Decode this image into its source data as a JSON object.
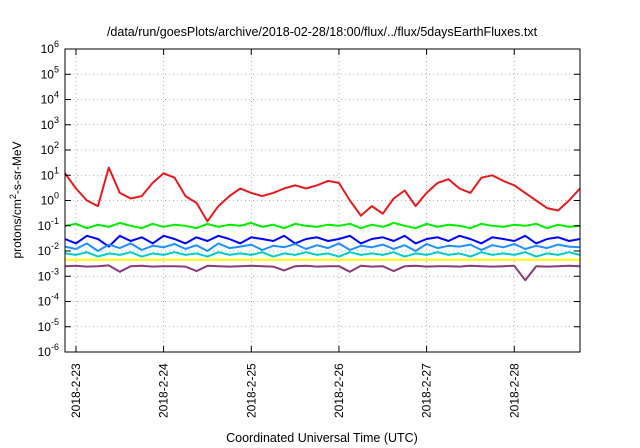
{
  "chart_data": {
    "type": "line",
    "title": "/data/run/goesPlots/archive/2018-02-28/18:00/flux/../flux/5daysEarthFluxes.txt",
    "xlabel": "Coordinated Universal Time (UTC)",
    "ylabel": {
      "base": "protons/cm",
      "sup": "2",
      "rest": "-s-sr-MeV"
    },
    "yscale": "log",
    "ylim": [
      1e-06,
      1000000.0
    ],
    "yticks": [
      {
        "value": 1e-06,
        "base": "10",
        "exp": "-6"
      },
      {
        "value": 1e-05,
        "base": "10",
        "exp": "-5"
      },
      {
        "value": 0.0001,
        "base": "10",
        "exp": "-4"
      },
      {
        "value": 0.001,
        "base": "10",
        "exp": "-3"
      },
      {
        "value": 0.01,
        "base": "10",
        "exp": "-2"
      },
      {
        "value": 0.1,
        "base": "10",
        "exp": "-1"
      },
      {
        "value": 1.0,
        "base": "10",
        "exp": "0"
      },
      {
        "value": 10.0,
        "base": "10",
        "exp": "1"
      },
      {
        "value": 100.0,
        "base": "10",
        "exp": "2"
      },
      {
        "value": 1000.0,
        "base": "10",
        "exp": "3"
      },
      {
        "value": 10000.0,
        "base": "10",
        "exp": "4"
      },
      {
        "value": 100000.0,
        "base": "10",
        "exp": "5"
      },
      {
        "value": 1000000.0,
        "base": "10",
        "exp": "6"
      }
    ],
    "xlim": [
      "2018-02-22 21:00",
      "2018-02-28 18:00"
    ],
    "xticks": [
      {
        "value": "2018-02-23 00:00",
        "label": "2018-2-23"
      },
      {
        "value": "2018-02-24 00:00",
        "label": "2018-2-24"
      },
      {
        "value": "2018-02-25 00:00",
        "label": "2018-2-25"
      },
      {
        "value": "2018-02-26 00:00",
        "label": "2018-2-26"
      },
      {
        "value": "2018-02-27 00:00",
        "label": "2018-2-27"
      },
      {
        "value": "2018-02-28 00:00",
        "label": "2018-2-28"
      }
    ],
    "grid": true,
    "legend": "none",
    "x": [
      "2018-02-22 21:00",
      "2018-02-23 00:00",
      "2018-02-23 03:00",
      "2018-02-23 06:00",
      "2018-02-23 09:00",
      "2018-02-23 12:00",
      "2018-02-23 15:00",
      "2018-02-23 18:00",
      "2018-02-23 21:00",
      "2018-02-24 00:00",
      "2018-02-24 03:00",
      "2018-02-24 06:00",
      "2018-02-24 09:00",
      "2018-02-24 12:00",
      "2018-02-24 15:00",
      "2018-02-24 18:00",
      "2018-02-24 21:00",
      "2018-02-25 00:00",
      "2018-02-25 03:00",
      "2018-02-25 06:00",
      "2018-02-25 09:00",
      "2018-02-25 12:00",
      "2018-02-25 15:00",
      "2018-02-25 18:00",
      "2018-02-25 21:00",
      "2018-02-26 00:00",
      "2018-02-26 03:00",
      "2018-02-26 06:00",
      "2018-02-26 09:00",
      "2018-02-26 12:00",
      "2018-02-26 15:00",
      "2018-02-26 18:00",
      "2018-02-26 21:00",
      "2018-02-27 00:00",
      "2018-02-27 03:00",
      "2018-02-27 06:00",
      "2018-02-27 09:00",
      "2018-02-27 12:00",
      "2018-02-27 15:00",
      "2018-02-27 18:00",
      "2018-02-27 21:00",
      "2018-02-28 00:00",
      "2018-02-28 03:00",
      "2018-02-28 06:00",
      "2018-02-28 09:00",
      "2018-02-28 12:00",
      "2018-02-28 15:00",
      "2018-02-28 18:00"
    ],
    "series": [
      {
        "color": "#e41a1c",
        "values": [
          12,
          3,
          1,
          0.6,
          20,
          2,
          1.2,
          1.5,
          5,
          12,
          8,
          1.5,
          0.8,
          0.15,
          0.6,
          1.5,
          3,
          2,
          1.5,
          2,
          3,
          4,
          3,
          4,
          6,
          5,
          1,
          0.25,
          0.6,
          0.3,
          1.2,
          2.5,
          0.6,
          2,
          5,
          7,
          3,
          2,
          8,
          10,
          6,
          4,
          2,
          1,
          0.5,
          0.4,
          1,
          3
        ]
      },
      {
        "color": "#00ee00",
        "values": [
          0.1,
          0.12,
          0.08,
          0.11,
          0.09,
          0.13,
          0.1,
          0.08,
          0.12,
          0.09,
          0.11,
          0.1,
          0.08,
          0.12,
          0.09,
          0.11,
          0.1,
          0.13,
          0.09,
          0.11,
          0.08,
          0.12,
          0.1,
          0.09,
          0.11,
          0.1,
          0.12,
          0.08,
          0.11,
          0.09,
          0.13,
          0.1,
          0.08,
          0.12,
          0.09,
          0.11,
          0.1,
          0.08,
          0.12,
          0.1,
          0.09,
          0.11,
          0.1,
          0.12,
          0.08,
          0.11,
          0.09,
          0.1
        ]
      },
      {
        "color": "#0000ff",
        "values": [
          0.03,
          0.02,
          0.04,
          0.03,
          0.015,
          0.04,
          0.025,
          0.035,
          0.02,
          0.04,
          0.03,
          0.02,
          0.035,
          0.025,
          0.04,
          0.03,
          0.02,
          0.035,
          0.03,
          0.025,
          0.04,
          0.02,
          0.03,
          0.035,
          0.025,
          0.03,
          0.04,
          0.02,
          0.03,
          0.035,
          0.025,
          0.04,
          0.02,
          0.03,
          0.035,
          0.025,
          0.04,
          0.03,
          0.02,
          0.035,
          0.03,
          0.025,
          0.04,
          0.02,
          0.03,
          0.035,
          0.025,
          0.03
        ]
      },
      {
        "color": "#1e90ff",
        "values": [
          0.015,
          0.012,
          0.02,
          0.01,
          0.018,
          0.013,
          0.02,
          0.011,
          0.016,
          0.014,
          0.019,
          0.012,
          0.017,
          0.01,
          0.02,
          0.013,
          0.015,
          0.018,
          0.011,
          0.016,
          0.014,
          0.019,
          0.012,
          0.017,
          0.013,
          0.02,
          0.011,
          0.016,
          0.014,
          0.018,
          0.012,
          0.017,
          0.01,
          0.019,
          0.013,
          0.016,
          0.015,
          0.018,
          0.011,
          0.017,
          0.014,
          0.019,
          0.012,
          0.016,
          0.013,
          0.018,
          0.015,
          0.014
        ]
      },
      {
        "color": "#00cccc",
        "values": [
          0.008,
          0.007,
          0.009,
          0.006,
          0.008,
          0.007,
          0.009,
          0.006,
          0.008,
          0.007,
          0.009,
          0.007,
          0.008,
          0.006,
          0.009,
          0.007,
          0.008,
          0.007,
          0.009,
          0.006,
          0.008,
          0.007,
          0.009,
          0.007,
          0.008,
          0.006,
          0.009,
          0.007,
          0.008,
          0.007,
          0.009,
          0.006,
          0.008,
          0.007,
          0.009,
          0.007,
          0.008,
          0.006,
          0.009,
          0.007,
          0.008,
          0.007,
          0.009,
          0.006,
          0.008,
          0.007,
          0.009,
          0.007
        ]
      },
      {
        "color": "#ffff00",
        "values": [
          0.0045,
          0.0045,
          0.0045,
          0.0045,
          0.0045,
          0.0045,
          0.0045,
          0.0045,
          0.0045,
          0.0045,
          0.0045,
          0.0045,
          0.0045,
          0.0045,
          0.0045,
          0.0045,
          0.0045,
          0.0045,
          0.0045,
          0.0045,
          0.0045,
          0.0045,
          0.0045,
          0.0045,
          0.0045,
          0.0045,
          0.0045,
          0.0045,
          0.0045,
          0.0045,
          0.0045,
          0.0045,
          0.0045,
          0.0045,
          0.0045,
          0.0045,
          0.0045,
          0.0045,
          0.0045,
          0.0045,
          0.0045,
          0.0045,
          0.0045,
          0.0045,
          0.0045,
          0.0045,
          0.0045,
          0.0045
        ]
      },
      {
        "color": "#8b3a7a",
        "values": [
          0.0025,
          0.0026,
          0.0024,
          0.0025,
          0.0027,
          0.0015,
          0.0025,
          0.0026,
          0.0024,
          0.0025,
          0.0025,
          0.0024,
          0.0016,
          0.0026,
          0.0025,
          0.0024,
          0.0025,
          0.0026,
          0.0025,
          0.0024,
          0.0017,
          0.0025,
          0.0026,
          0.0024,
          0.0025,
          0.0025,
          0.0015,
          0.0026,
          0.0024,
          0.0025,
          0.0016,
          0.0025,
          0.0026,
          0.0024,
          0.0025,
          0.0025,
          0.0024,
          0.0026,
          0.0025,
          0.0024,
          0.0025,
          0.0026,
          0.0007,
          0.0025,
          0.0024,
          0.0025,
          0.0026,
          0.0025
        ]
      }
    ]
  }
}
